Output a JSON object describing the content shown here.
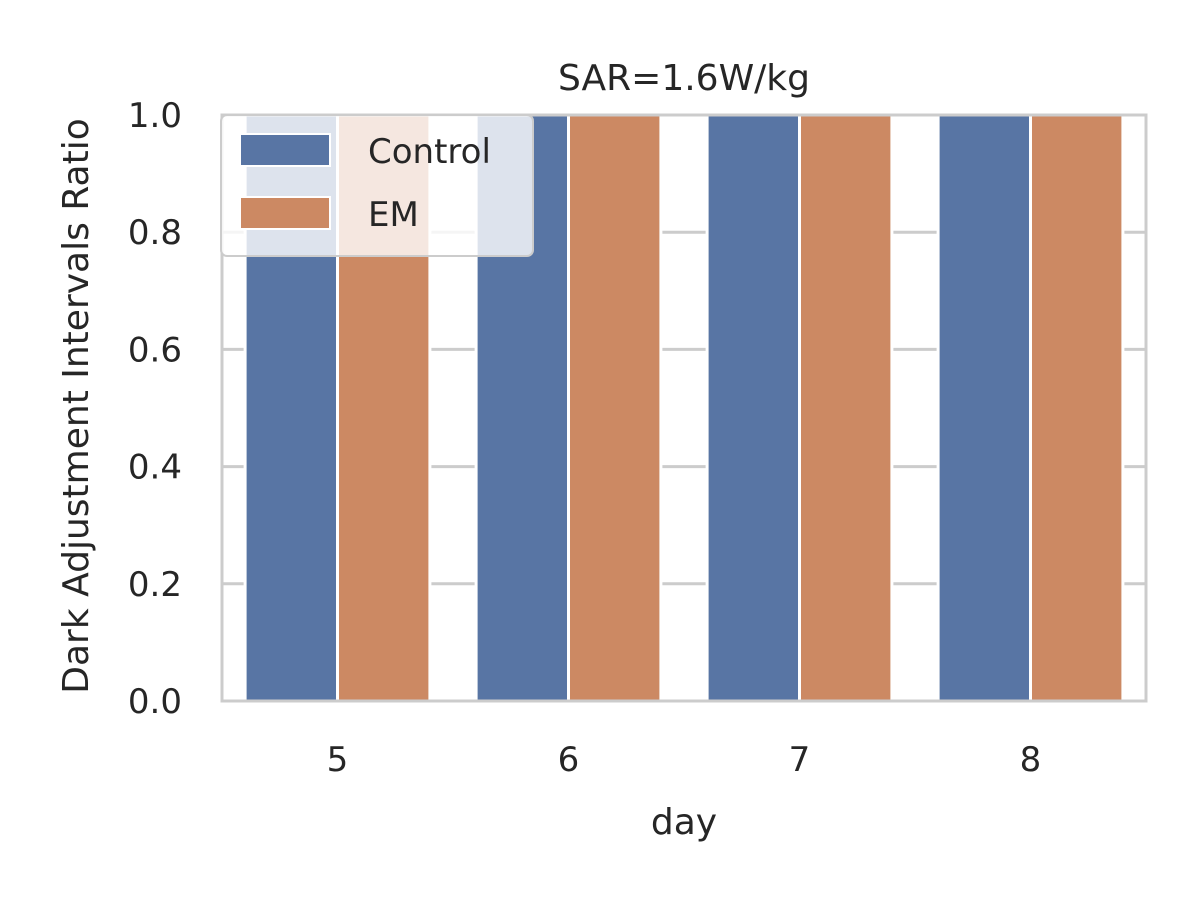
{
  "chart_data": {
    "type": "bar",
    "title": "SAR=1.6W/kg",
    "xlabel": "day",
    "ylabel": "Dark Adjustment Intervals Ratio",
    "categories": [
      "5",
      "6",
      "7",
      "8"
    ],
    "series": [
      {
        "name": "Control",
        "values": [
          1.0,
          1.0,
          1.0,
          1.0
        ],
        "color": "#5875a4"
      },
      {
        "name": "EM",
        "values": [
          1.0,
          1.0,
          1.0,
          1.0
        ],
        "color": "#cc8963"
      }
    ],
    "ylim": [
      0,
      1.0
    ],
    "yticks": [
      "0.0",
      "0.2",
      "0.4",
      "0.6",
      "0.8",
      "1.0"
    ],
    "grid": true,
    "legend_position": "top-left",
    "colors": {
      "grid": "#cccccc",
      "frame": "#cccccc",
      "text": "#262626"
    }
  }
}
